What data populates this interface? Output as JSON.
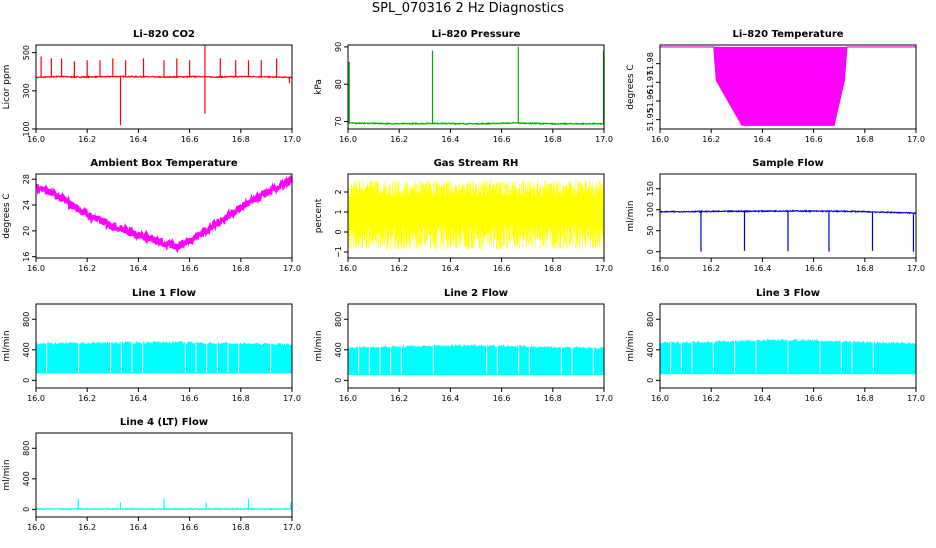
{
  "title": "SPL_070316  2 Hz Diagnostics",
  "chart_data": [
    {
      "type": "line",
      "title": "Li–820 CO2",
      "ylabel": "Licor ppm",
      "color": "#ff0000",
      "xlim": [
        16.0,
        17.0
      ],
      "ylim": [
        100,
        540
      ],
      "xticks": [
        16.0,
        16.2,
        16.4,
        16.6,
        16.8,
        17.0
      ],
      "xtick_labels": [
        "16.0",
        "16.2",
        "16.4",
        "16.6",
        "16.8",
        "17.0"
      ],
      "yticks": [
        100,
        300,
        500
      ],
      "ytick_labels": [
        "100",
        "300",
        "500"
      ],
      "series": [
        {
          "name": "",
          "x": [
            16.0,
            16.04,
            16.09,
            16.16,
            16.33,
            16.5,
            16.66,
            16.67,
            16.83,
            17.0
          ],
          "y": [
            370,
            372,
            375,
            372,
            375,
            372,
            375,
            372,
            375,
            370
          ],
          "spikes": [
            {
              "x": 16.02,
              "y": 480
            },
            {
              "x": 16.06,
              "y": 470
            },
            {
              "x": 16.1,
              "y": 470
            },
            {
              "x": 16.15,
              "y": 455
            },
            {
              "x": 16.2,
              "y": 460
            },
            {
              "x": 16.25,
              "y": 460
            },
            {
              "x": 16.3,
              "y": 470
            },
            {
              "x": 16.33,
              "y": 120
            },
            {
              "x": 16.35,
              "y": 460
            },
            {
              "x": 16.42,
              "y": 470
            },
            {
              "x": 16.5,
              "y": 460
            },
            {
              "x": 16.55,
              "y": 470
            },
            {
              "x": 16.6,
              "y": 460
            },
            {
              "x": 16.66,
              "y": 540
            },
            {
              "x": 16.66,
              "y": 180
            },
            {
              "x": 16.72,
              "y": 470
            },
            {
              "x": 16.78,
              "y": 460
            },
            {
              "x": 16.83,
              "y": 460
            },
            {
              "x": 16.88,
              "y": 460
            },
            {
              "x": 16.94,
              "y": 470
            },
            {
              "x": 16.99,
              "y": 340
            }
          ]
        }
      ]
    },
    {
      "type": "line",
      "title": "Li–820 Pressure",
      "ylabel": "kPa",
      "color": "#00aa00",
      "xlim": [
        16.0,
        17.0
      ],
      "ylim": [
        68,
        90.5
      ],
      "xticks": [
        16.0,
        16.2,
        16.4,
        16.6,
        16.8,
        17.0
      ],
      "xtick_labels": [
        "16.0",
        "16.2",
        "16.4",
        "16.6",
        "16.8",
        "17.0"
      ],
      "yticks": [
        70,
        80,
        90
      ],
      "ytick_labels": [
        "70",
        "80",
        "90"
      ],
      "series": [
        {
          "name": "",
          "x": [
            16.0,
            16.2,
            16.33,
            16.5,
            16.66,
            16.8,
            17.0
          ],
          "y": [
            69.6,
            69.4,
            69.5,
            69.4,
            69.6,
            69.4,
            69.4
          ],
          "spikes": [
            {
              "x": 16.005,
              "y": 86
            },
            {
              "x": 16.33,
              "y": 89
            },
            {
              "x": 16.665,
              "y": 90
            },
            {
              "x": 16.998,
              "y": 89
            }
          ]
        }
      ]
    },
    {
      "type": "line",
      "title": "Li–820 Temperature",
      "ylabel": "degrees C",
      "color": "#ff00ff",
      "xlim": [
        16.0,
        17.0
      ],
      "ylim": [
        51.945,
        51.99
      ],
      "xticks": [
        16.0,
        16.2,
        16.4,
        16.6,
        16.8,
        17.0
      ],
      "xtick_labels": [
        "16.0",
        "16.2",
        "16.4",
        "16.6",
        "16.8",
        "17.0"
      ],
      "yticks": [
        51.95,
        51.96,
        51.97,
        51.98
      ],
      "ytick_labels": [
        "51.95",
        "51.96",
        "51.97",
        "51.98"
      ],
      "series": [
        {
          "name": "",
          "x": [
            16.0,
            16.21,
            16.22,
            16.32,
            16.68,
            16.72,
            16.73,
            17.0
          ],
          "y": [
            51.989,
            51.989,
            51.971,
            51.947,
            51.947,
            51.971,
            51.989,
            51.989
          ]
        }
      ]
    },
    {
      "type": "line",
      "title": "Ambient Box Temperature",
      "ylabel": "degrees C",
      "color": "#ff00ff",
      "xlim": [
        16.0,
        17.0
      ],
      "ylim": [
        15.8,
        28.8
      ],
      "xticks": [
        16.0,
        16.2,
        16.4,
        16.6,
        16.8,
        17.0
      ],
      "xtick_labels": [
        "16.0",
        "16.2",
        "16.4",
        "16.6",
        "16.8",
        "17.0"
      ],
      "yticks": [
        16,
        20,
        24,
        28
      ],
      "ytick_labels": [
        "16",
        "20",
        "24",
        "28"
      ],
      "series": [
        {
          "name": "",
          "x": [
            16.0,
            16.1,
            16.2,
            16.3,
            16.4,
            16.5,
            16.55,
            16.6,
            16.7,
            16.8,
            16.9,
            17.0
          ],
          "y": [
            27.0,
            25.0,
            22.5,
            20.8,
            19.4,
            18.0,
            17.6,
            18.5,
            21.0,
            23.6,
            25.8,
            27.8
          ]
        }
      ]
    },
    {
      "type": "line",
      "title": "Gas Stream RH",
      "ylabel": "percent",
      "color": "#ffff00",
      "xlim": [
        16.0,
        17.0
      ],
      "ylim": [
        -1.3,
        2.9
      ],
      "xticks": [
        16.0,
        16.2,
        16.4,
        16.6,
        16.8,
        17.0
      ],
      "xtick_labels": [
        "16.0",
        "16.2",
        "16.4",
        "16.6",
        "16.8",
        "17.0"
      ],
      "yticks": [
        -1,
        0,
        1,
        2
      ],
      "ytick_labels": [
        "−1",
        "0",
        "1",
        "2"
      ],
      "series": [
        {
          "name": "",
          "x": [
            16.0,
            16.5,
            17.0
          ],
          "y": [
            1.0,
            1.0,
            1.0
          ],
          "band": [
            -0.9,
            2.6
          ]
        }
      ]
    },
    {
      "type": "line",
      "title": "Sample Flow",
      "ylabel": "ml/min",
      "color": "#0000cc",
      "xlim": [
        16.0,
        17.0
      ],
      "ylim": [
        -15,
        185
      ],
      "xticks": [
        16.0,
        16.2,
        16.4,
        16.6,
        16.8,
        17.0
      ],
      "xtick_labels": [
        "16.0",
        "16.2",
        "16.4",
        "16.6",
        "16.8",
        "17.0"
      ],
      "yticks": [
        0,
        50,
        100,
        150
      ],
      "ytick_labels": [
        "0",
        "50",
        "100",
        "150"
      ],
      "series": [
        {
          "name": "",
          "x": [
            16.0,
            16.25,
            16.5,
            16.75,
            17.0
          ],
          "y": [
            95,
            96,
            97,
            96,
            92
          ],
          "spikes": [
            {
              "x": 16.16,
              "y": 0
            },
            {
              "x": 16.33,
              "y": 2
            },
            {
              "x": 16.5,
              "y": 1
            },
            {
              "x": 16.66,
              "y": 0
            },
            {
              "x": 16.83,
              "y": 2
            },
            {
              "x": 16.99,
              "y": 0
            }
          ]
        }
      ]
    },
    {
      "type": "area",
      "title": "Line 1 Flow",
      "ylabel": "ml/min",
      "color": "#00ffff",
      "xlim": [
        16.0,
        17.0
      ],
      "ylim": [
        -100,
        1000
      ],
      "xticks": [
        16.0,
        16.2,
        16.4,
        16.6,
        16.8,
        17.0
      ],
      "xtick_labels": [
        "16.0",
        "16.2",
        "16.4",
        "16.6",
        "16.8",
        "17.0"
      ],
      "yticks": [
        0,
        400,
        800
      ],
      "ytick_labels": [
        "0",
        "400",
        "800"
      ],
      "series": [
        {
          "name": "",
          "x": [
            16.0,
            16.5,
            17.0
          ],
          "upper": [
            480,
            500,
            470
          ],
          "lower": [
            90,
            90,
            90
          ]
        }
      ]
    },
    {
      "type": "area",
      "title": "Line 2 Flow",
      "ylabel": "ml/min",
      "color": "#00ffff",
      "xlim": [
        16.0,
        17.0
      ],
      "ylim": [
        -100,
        1000
      ],
      "xticks": [
        16.0,
        16.2,
        16.4,
        16.6,
        16.8,
        17.0
      ],
      "xtick_labels": [
        "16.0",
        "16.2",
        "16.4",
        "16.6",
        "16.8",
        "17.0"
      ],
      "yticks": [
        0,
        400,
        800
      ],
      "ytick_labels": [
        "0",
        "400",
        "800"
      ],
      "series": [
        {
          "name": "",
          "x": [
            16.0,
            16.5,
            17.0
          ],
          "upper": [
            430,
            460,
            420
          ],
          "lower": [
            70,
            70,
            70
          ]
        }
      ]
    },
    {
      "type": "area",
      "title": "Line 3 Flow",
      "ylabel": "ml/min",
      "color": "#00ffff",
      "xlim": [
        16.0,
        17.0
      ],
      "ylim": [
        -100,
        1000
      ],
      "xticks": [
        16.0,
        16.2,
        16.4,
        16.6,
        16.8,
        17.0
      ],
      "xtick_labels": [
        "16.0",
        "16.2",
        "16.4",
        "16.6",
        "16.8",
        "17.0"
      ],
      "yticks": [
        0,
        400,
        800
      ],
      "ytick_labels": [
        "0",
        "400",
        "800"
      ],
      "series": [
        {
          "name": "",
          "x": [
            16.0,
            16.5,
            17.0
          ],
          "upper": [
            490,
            530,
            480
          ],
          "lower": [
            80,
            80,
            80
          ]
        }
      ]
    },
    {
      "type": "line",
      "title": "Line 4 (LT) Flow",
      "ylabel": "ml/min",
      "color": "#00ffff",
      "xlim": [
        16.0,
        17.0
      ],
      "ylim": [
        -100,
        1000
      ],
      "xticks": [
        16.0,
        16.2,
        16.4,
        16.6,
        16.8,
        17.0
      ],
      "xtick_labels": [
        "16.0",
        "16.2",
        "16.4",
        "16.6",
        "16.8",
        "17.0"
      ],
      "yticks": [
        0,
        400,
        800
      ],
      "ytick_labels": [
        "0",
        "400",
        "800"
      ],
      "series": [
        {
          "name": "",
          "x": [
            16.0,
            17.0
          ],
          "y": [
            5,
            5
          ],
          "spikes": [
            {
              "x": 16.165,
              "y": 140
            },
            {
              "x": 16.33,
              "y": 90
            },
            {
              "x": 16.5,
              "y": 140
            },
            {
              "x": 16.665,
              "y": 90
            },
            {
              "x": 16.83,
              "y": 140
            },
            {
              "x": 16.995,
              "y": 90
            }
          ]
        }
      ]
    }
  ]
}
